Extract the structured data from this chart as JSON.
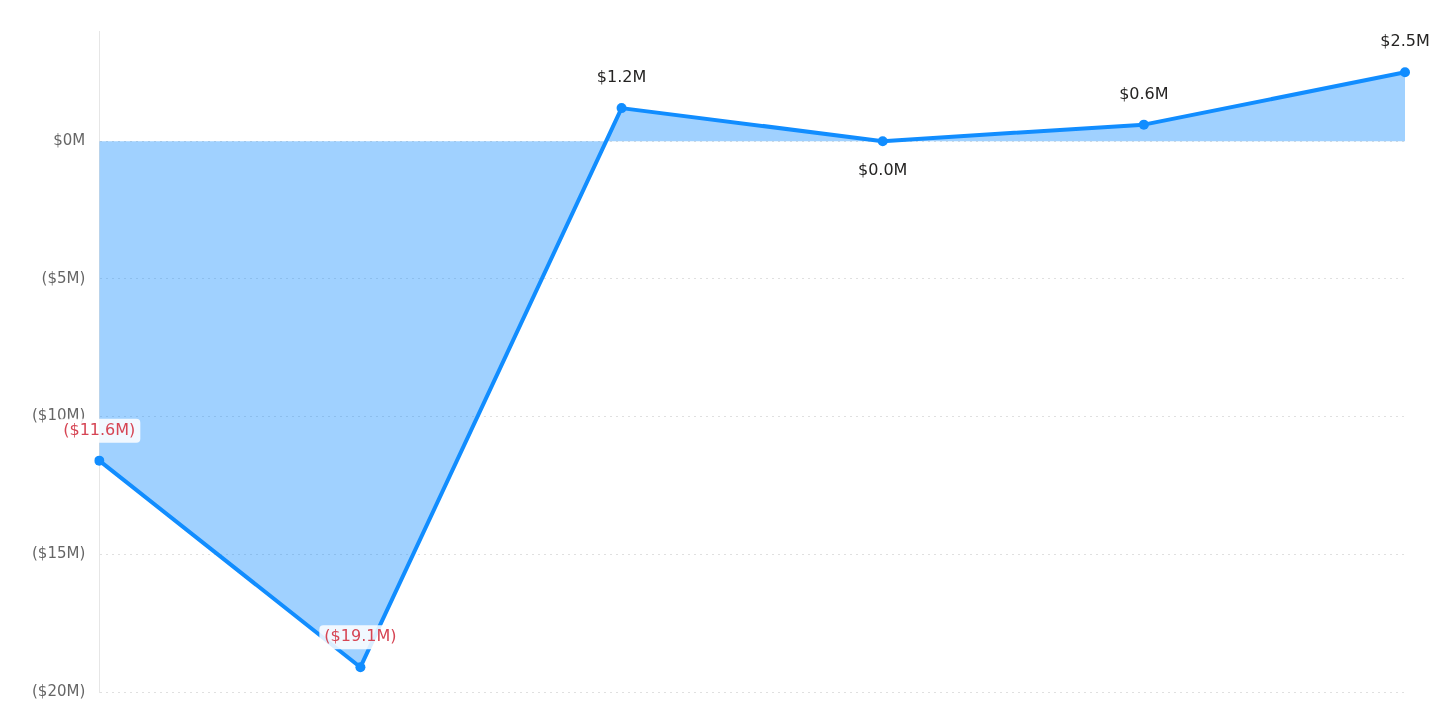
{
  "chart_data": {
    "type": "area",
    "categories": [
      null,
      null,
      null,
      null,
      null,
      null
    ],
    "series": [
      {
        "color": "#118dff",
        "values": [
          -11.6,
          -19.1,
          1.2,
          0.0,
          0.6,
          2.5
        ],
        "value_labels": [
          "($11.6M)",
          "($19.1M)",
          "$1.2M",
          "$0.0M",
          "$0.6M",
          "$2.5M"
        ]
      }
    ],
    "ylim": [
      -20,
      4
    ],
    "yticks": [
      {
        "value": 0,
        "label": "$0M"
      },
      {
        "value": -5,
        "label": "($5M)"
      },
      {
        "value": -10,
        "label": "($10M)"
      },
      {
        "value": -15,
        "label": "($15M)"
      },
      {
        "value": -20,
        "label": "($20M)"
      }
    ],
    "grid": "y",
    "legend": false,
    "marker": "circle",
    "line_style": "solid",
    "tick_labels": "y"
  }
}
